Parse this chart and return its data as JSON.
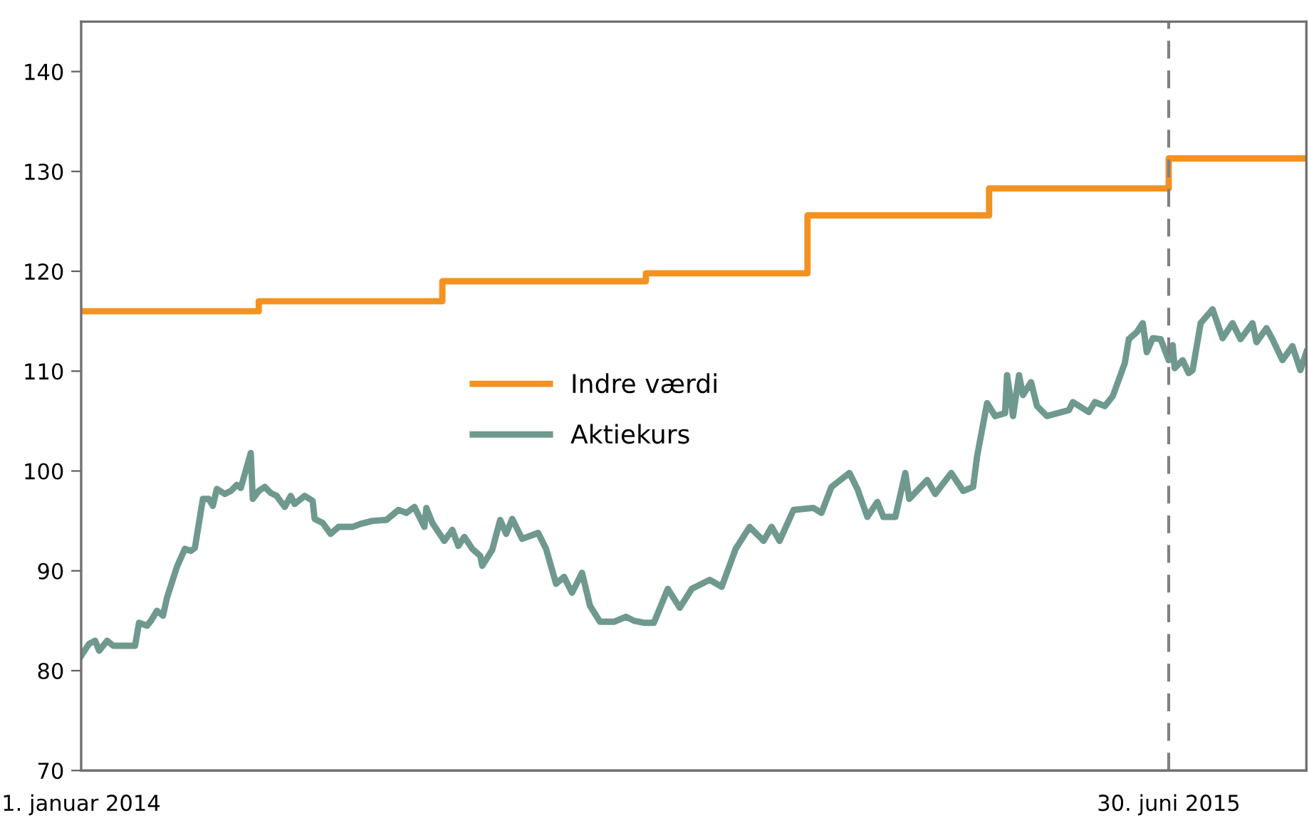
{
  "chart_data": {
    "type": "line",
    "series": [
      {
        "name": "Indre værdi",
        "type": "step",
        "color": "#f39220",
        "x": [
          "2014-01-01",
          "2014-03-31",
          "2014-07-01",
          "2014-10-11",
          "2014-12-31",
          "2015-04-01",
          "2015-06-30",
          "2015-09-07"
        ],
        "values": [
          116,
          117,
          119,
          119.8,
          125.6,
          128.3,
          131.3,
          131.3
        ]
      },
      {
        "name": "Aktiekurs",
        "color": "#6f998f",
        "x": [
          "2014-01-01",
          "2014-01-05",
          "2014-01-08",
          "2014-01-10",
          "2014-01-14",
          "2014-01-17",
          "2014-01-28",
          "2014-01-30",
          "2014-02-03",
          "2014-02-05",
          "2014-02-08",
          "2014-02-11",
          "2014-02-13",
          "2014-02-18",
          "2014-02-22",
          "2014-02-25",
          "2014-02-27",
          "2014-03-03",
          "2014-03-06",
          "2014-03-08",
          "2014-03-10",
          "2014-03-14",
          "2014-03-17",
          "2014-03-20",
          "2014-03-22",
          "2014-03-27",
          "2014-03-28",
          "2014-03-31",
          "2014-04-03",
          "2014-04-06",
          "2014-04-09",
          "2014-04-13",
          "2014-04-16",
          "2014-04-18",
          "2014-04-23",
          "2014-04-27",
          "2014-04-28",
          "2014-05-02",
          "2014-05-06",
          "2014-05-10",
          "2014-05-17",
          "2014-05-21",
          "2014-05-27",
          "2014-06-03",
          "2014-06-09",
          "2014-06-13",
          "2014-06-17",
          "2014-06-22",
          "2014-06-23",
          "2014-06-26",
          "2014-07-02",
          "2014-07-06",
          "2014-07-09",
          "2014-07-12",
          "2014-07-16",
          "2014-07-20",
          "2014-07-21",
          "2014-07-26",
          "2014-07-30",
          "2014-08-02",
          "2014-08-05",
          "2014-08-10",
          "2014-08-18",
          "2014-08-22",
          "2014-08-27",
          "2014-08-31",
          "2014-09-04",
          "2014-09-09",
          "2014-09-13",
          "2014-09-18",
          "2014-09-25",
          "2014-10-01",
          "2014-10-05",
          "2014-10-10",
          "2014-10-15",
          "2014-10-22",
          "2014-10-28",
          "2014-11-03",
          "2014-11-12",
          "2014-11-18",
          "2014-11-25",
          "2014-12-02",
          "2014-12-09",
          "2014-12-13",
          "2014-12-17",
          "2014-12-24",
          "2015-01-03",
          "2015-01-07",
          "2015-01-12",
          "2015-01-21",
          "2015-01-25",
          "2015-01-30",
          "2015-02-04",
          "2015-02-07",
          "2015-02-13",
          "2015-02-18",
          "2015-02-20",
          "2015-03-01",
          "2015-03-05",
          "2015-03-13",
          "2015-03-19",
          "2015-03-24",
          "2015-03-26",
          "2015-03-31",
          "2015-04-04",
          "2015-04-09",
          "2015-04-10",
          "2015-04-13",
          "2015-04-16",
          "2015-04-18",
          "2015-04-22",
          "2015-04-25",
          "2015-04-30",
          "2015-05-11",
          "2015-05-13",
          "2015-05-21",
          "2015-05-24",
          "2015-05-29",
          "2015-06-02",
          "2015-06-08",
          "2015-06-10",
          "2015-06-14",
          "2015-06-17",
          "2015-06-19",
          "2015-06-22",
          "2015-06-26",
          "2015-06-30",
          "2015-07-02",
          "2015-07-03",
          "2015-07-07",
          "2015-07-10",
          "2015-07-12",
          "2015-07-16",
          "2015-07-22",
          "2015-07-27",
          "2015-08-01",
          "2015-08-05",
          "2015-08-11",
          "2015-08-13",
          "2015-08-18",
          "2015-08-21",
          "2015-08-26",
          "2015-08-31",
          "2015-09-04",
          "2015-09-07"
        ],
        "values": [
          81.5,
          82.7,
          83,
          82,
          83,
          82.5,
          82.5,
          84.8,
          84.5,
          85,
          86,
          85.5,
          87.3,
          90.4,
          92.2,
          92,
          92.3,
          97.2,
          97.2,
          96.5,
          98.2,
          97.7,
          98,
          98.6,
          98.3,
          101.8,
          97.2,
          98,
          98.4,
          97.8,
          97.5,
          96.4,
          97.5,
          96.7,
          97.5,
          97,
          95.2,
          94.8,
          93.7,
          94.4,
          94.4,
          94.7,
          95,
          95.1,
          96.1,
          95.8,
          96.4,
          94.4,
          96.3,
          94.8,
          93,
          94.1,
          92.5,
          93.4,
          92.2,
          91.5,
          90.5,
          92.1,
          95.1,
          93.7,
          95.2,
          93.2,
          93.8,
          92.2,
          88.7,
          89.4,
          87.8,
          89.8,
          86.5,
          84.9,
          84.9,
          85.4,
          85,
          84.8,
          84.8,
          88.2,
          86.3,
          88.2,
          89.1,
          88.4,
          92.2,
          94.4,
          93,
          94.4,
          93,
          96.1,
          96.3,
          95.8,
          98.4,
          99.8,
          98.2,
          95.4,
          96.9,
          95.4,
          95.4,
          99.8,
          97.2,
          99.1,
          97.7,
          99.8,
          98,
          98.4,
          101.5,
          106.8,
          105.5,
          105.8,
          109.6,
          105.5,
          109.6,
          107.6,
          108.9,
          106.5,
          105.5,
          106.1,
          106.9,
          105.9,
          106.9,
          106.5,
          107.5,
          110.8,
          113.2,
          113.9,
          114.8,
          111.9,
          113.3,
          113.2,
          111.1,
          112.6,
          110.3,
          111.1,
          109.8,
          110.1,
          114.8,
          116.2,
          113.3,
          114.8,
          113.2,
          114.8,
          112.9,
          114.3,
          113.2,
          111.1,
          112.5,
          110.1,
          111.9
        ]
      }
    ],
    "xlim": [
      "2014-01-01",
      "2015-09-07"
    ],
    "xticks": [
      {
        "value": "2014-01-01",
        "label": "1. januar 2014"
      },
      {
        "value": "2015-06-30",
        "label": "30. juni 2015"
      }
    ],
    "ylim": [
      70,
      145
    ],
    "yticks": [
      70,
      80,
      90,
      100,
      110,
      120,
      130,
      140
    ],
    "ref_lines": [
      {
        "axis": "x",
        "value": "2015-06-30",
        "color": "#808080",
        "line_style": "dashed"
      }
    ],
    "legend": "center",
    "grid": false,
    "line_style": "solid",
    "marker": "none"
  }
}
